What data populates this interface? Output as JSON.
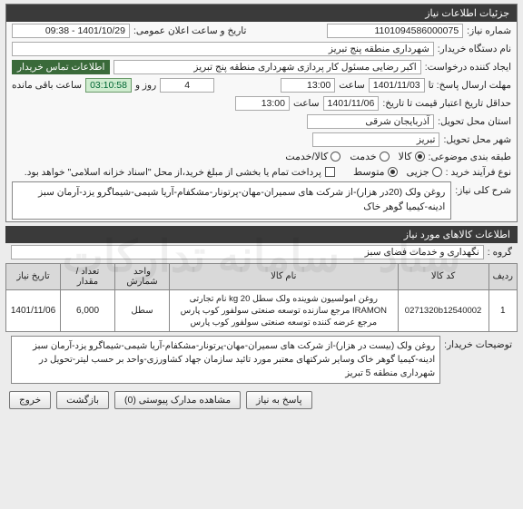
{
  "colors": {
    "header_bg": "#3a3a3a",
    "header_fg": "#ffffff",
    "contact_bg": "#3a6a3a",
    "time_left_bg": "#cfeccf",
    "time_left_border": "#6a9a6a",
    "border": "#888888"
  },
  "panel": {
    "title": "جزئیات اطلاعات نیاز"
  },
  "need": {
    "number_label": "شماره نیاز:",
    "number": "1101094586000075",
    "announce_label": "تاریخ و ساعت اعلان عمومی:",
    "announce": "1401/10/29 - 09:38",
    "buyer_org_label": "نام دستگاه خریدار:",
    "buyer_org": "شهرداری منطقه پنج تبریز",
    "creator_label": "ایجاد کننده درخواست:",
    "creator": "اکبر رضایی مسئول کار پردازی شهرداری منطقه پنج تبریز",
    "contact_label": "اطلاعات تماس خریدار",
    "reply_deadline_label": "مهلت ارسال پاسخ: تا",
    "reply_date": "1401/11/03",
    "hour_label": "ساعت",
    "reply_hour": "13:00",
    "day_label": "روز و",
    "days_left": "4",
    "time_left": "03:10:58",
    "time_left_suffix": "ساعت باقی مانده",
    "validity_label": "حداقل تاریخ اعتبار قیمت تا تاریخ:",
    "validity_date": "1401/11/06",
    "validity_hour": "13:00",
    "province_label": "استان محل تحویل:",
    "province": "آذربایجان شرقی",
    "city_label": "شهر محل تحویل:",
    "city": "تبریز",
    "category_label": "طبقه بندی موضوعی:",
    "cat_goods": "کالا",
    "cat_service": "خدمت",
    "cat_goods_service": "کالا/خدمت",
    "process_label": "نوع فرآیند خرید :",
    "proc_small": "جزیی",
    "proc_medium": "متوسط",
    "proc_note": "پرداخت تمام یا بخشی از مبلغ خرید،از محل \"اسناد خزانه اسلامی\" خواهد بود.",
    "general_desc_label": "شرح کلی نیاز:",
    "general_desc": "روغن ولک (20در هزار)-از شرکت های سمیران-مهان-پرتونار-مشکفام-آریا شیمی-شیماگرو یزد-آرمان سبز ادینه-کیمیا گوهر خاک"
  },
  "items_section": {
    "title": "اطلاعات کالاهای مورد نیاز",
    "group_label": "گروه :",
    "group": "نگهداری و خدمات فضای سبز"
  },
  "table": {
    "headers": {
      "row": "ردیف",
      "code": "کد کالا",
      "name": "نام کالا",
      "unit": "واحد شمارش",
      "qty": "تعداد / مقدار",
      "date": "تاریخ نیاز"
    },
    "rows": [
      {
        "row": "1",
        "code": "0271320b12540002",
        "name": "روغن امولسیون شوینده ولک سطل 20 kg نام تجارتی IRAMON مرجع سازنده توسعه صنعتی سولفور کوب پارس مرجع عرضه کننده توسعه صنعتی سولفور کوب پارس",
        "unit": "سطل",
        "qty": "6,000",
        "date": "1401/11/06"
      }
    ]
  },
  "buyer_notes": {
    "label": "توضیحات خریدار:",
    "text": "روغن ولک (بیست در هزار)-از شرکت های سمیران-مهان-پرتونار-مشکفام-آریا شیمی-شیماگرو یزد-آرمان سبز ادینه-کیمیا گوهر خاک وسایر شرکتهای معتبر مورد تائید سازمان جهاد کشاورزی-واحد بر حسب لیتر-تحویل در شهرداری منطقه 5 تبریز"
  },
  "buttons": {
    "respond": "پاسخ به نیاز",
    "attachments": "مشاهده مدارک پیوستی (0)",
    "back": "بازگشت",
    "exit": "خروج"
  }
}
